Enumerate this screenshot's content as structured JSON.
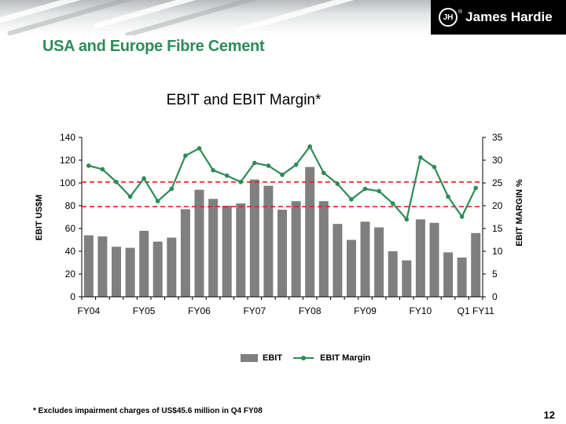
{
  "header": {
    "logo_text": "James Hardie",
    "logo_mark": "JH",
    "logo_registered": "®"
  },
  "page_title": "USA and Europe Fibre Cement",
  "footnote": "* Excludes impairment charges of US$45.6 million in Q4 FY08",
  "page_number": "12",
  "colors": {
    "title_green": "#2e8c58",
    "bar": "#7f7f7f",
    "line": "#2e8b57",
    "reference_line": "#e02020"
  },
  "chart_data": {
    "type": "bar",
    "title": "EBIT and EBIT Margin*",
    "ylabel": "EBIT US$M",
    "y2label": "EBIT MARGIN %",
    "ylim": [
      0,
      140
    ],
    "y2lim": [
      0,
      35
    ],
    "yticks": [
      0,
      20,
      40,
      60,
      80,
      100,
      120,
      140
    ],
    "y2ticks": [
      0,
      5,
      10,
      15,
      20,
      25,
      30,
      35
    ],
    "x_tick_labels": [
      {
        "label": "FY04",
        "at_index": 0
      },
      {
        "label": "FY05",
        "at_index": 4
      },
      {
        "label": "FY06",
        "at_index": 8
      },
      {
        "label": "FY07",
        "at_index": 12
      },
      {
        "label": "FY08",
        "at_index": 16
      },
      {
        "label": "FY09",
        "at_index": 20
      },
      {
        "label": "FY10",
        "at_index": 24
      },
      {
        "label": "Q1 FY11",
        "at_index": 28
      }
    ],
    "series": [
      {
        "name": "EBIT",
        "kind": "bar",
        "axis": "left",
        "values": [
          54,
          53,
          44,
          43,
          58,
          48.5,
          52,
          77,
          94,
          86,
          80,
          82,
          103,
          97.5,
          76.5,
          84,
          114,
          84,
          64,
          50,
          66,
          61,
          40,
          32,
          68,
          65,
          39,
          34.5,
          56
        ]
      },
      {
        "name": "EBIT Margin",
        "kind": "line",
        "axis": "right",
        "values": [
          28.8,
          28.0,
          25.2,
          22.0,
          26.0,
          21.0,
          23.7,
          31.0,
          32.6,
          27.8,
          26.6,
          25.2,
          29.4,
          28.8,
          26.8,
          29.0,
          33.0,
          27.2,
          24.8,
          21.4,
          23.7,
          23.2,
          20.5,
          17.0,
          30.6,
          28.5,
          22.0,
          17.6,
          23.9
        ]
      }
    ],
    "reference_lines": [
      {
        "axis": "right",
        "value": 25.2,
        "style": "dashed"
      },
      {
        "axis": "right",
        "value": 19.8,
        "style": "dashed"
      }
    ],
    "grid": false,
    "legend_position": "bottom"
  }
}
